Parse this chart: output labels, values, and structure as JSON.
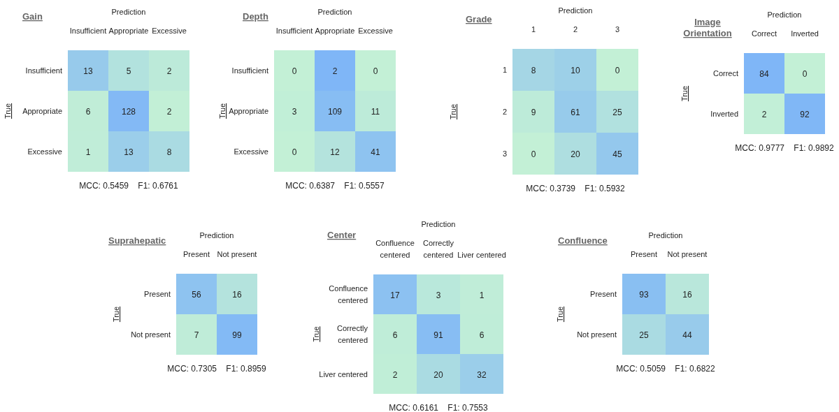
{
  "chart_data": [
    {
      "type": "heatmap",
      "title": "Gain",
      "xlabel": "Prediction",
      "ylabel": "True",
      "categories": [
        "Insufficient",
        "Appropriate",
        "Excessive"
      ],
      "y_categories": [
        "Insufficient",
        "Appropriate",
        "Excessive"
      ],
      "cells": [
        [
          13,
          5,
          2
        ],
        [
          6,
          128,
          2
        ],
        [
          1,
          13,
          8
        ]
      ],
      "data_labels": true,
      "annotations": [
        "MCC: 0.5459    F1: 0.6761"
      ]
    },
    {
      "type": "heatmap",
      "title": "Depth",
      "xlabel": "Prediction",
      "ylabel": "True",
      "categories": [
        "Insufficient",
        "Appropriate",
        "Excessive"
      ],
      "y_categories": [
        "Insufficient",
        "Appropriate",
        "Excessive"
      ],
      "cells": [
        [
          0,
          2,
          0
        ],
        [
          3,
          109,
          11
        ],
        [
          0,
          12,
          41
        ]
      ],
      "data_labels": true,
      "annotations": [
        "MCC: 0.6387    F1: 0.5557"
      ]
    },
    {
      "type": "heatmap",
      "title": "Grade",
      "xlabel": "Prediction",
      "ylabel": "True",
      "categories": [
        "1",
        "2",
        "3"
      ],
      "y_categories": [
        "1",
        "2",
        "3"
      ],
      "cells": [
        [
          8,
          10,
          0
        ],
        [
          9,
          61,
          25
        ],
        [
          0,
          20,
          45
        ]
      ],
      "data_labels": true,
      "annotations": [
        "MCC: 0.3739    F1: 0.5932"
      ]
    },
    {
      "type": "heatmap",
      "title": "Image Orientation",
      "xlabel": "Prediction",
      "ylabel": "True",
      "categories": [
        "Correct",
        "Inverted"
      ],
      "y_categories": [
        "Correct",
        "Inverted"
      ],
      "cells": [
        [
          84,
          0
        ],
        [
          2,
          92
        ]
      ],
      "data_labels": true,
      "annotations": [
        "MCC: 0.9777    F1: 0.9892"
      ]
    },
    {
      "type": "heatmap",
      "title": "Suprahepatic",
      "xlabel": "Prediction",
      "ylabel": "True",
      "categories": [
        "Present",
        "Not present"
      ],
      "y_categories": [
        "Present",
        "Not present"
      ],
      "cells": [
        [
          56,
          16
        ],
        [
          7,
          99
        ]
      ],
      "data_labels": true,
      "annotations": [
        "MCC: 0.7305    F1: 0.8959"
      ]
    },
    {
      "type": "heatmap",
      "title": "Center",
      "xlabel": "Prediction",
      "ylabel": "True",
      "categories": [
        "Confluence centered",
        "Correctly centered",
        "Liver centered"
      ],
      "y_categories": [
        "Confluence centered",
        "Correctly centered",
        "Liver centered"
      ],
      "cells": [
        [
          17,
          3,
          1
        ],
        [
          6,
          91,
          6
        ],
        [
          2,
          20,
          32
        ]
      ],
      "data_labels": true,
      "annotations": [
        "MCC: 0.6161    F1: 0.7553"
      ]
    },
    {
      "type": "heatmap",
      "title": "Confluence",
      "xlabel": "Prediction",
      "ylabel": "True",
      "categories": [
        "Present",
        "Not present"
      ],
      "y_categories": [
        "Present",
        "Not present"
      ],
      "cells": [
        [
          93,
          16
        ],
        [
          25,
          44
        ]
      ],
      "data_labels": true,
      "annotations": [
        "MCC: 0.5059    F1: 0.6822"
      ]
    }
  ]
}
